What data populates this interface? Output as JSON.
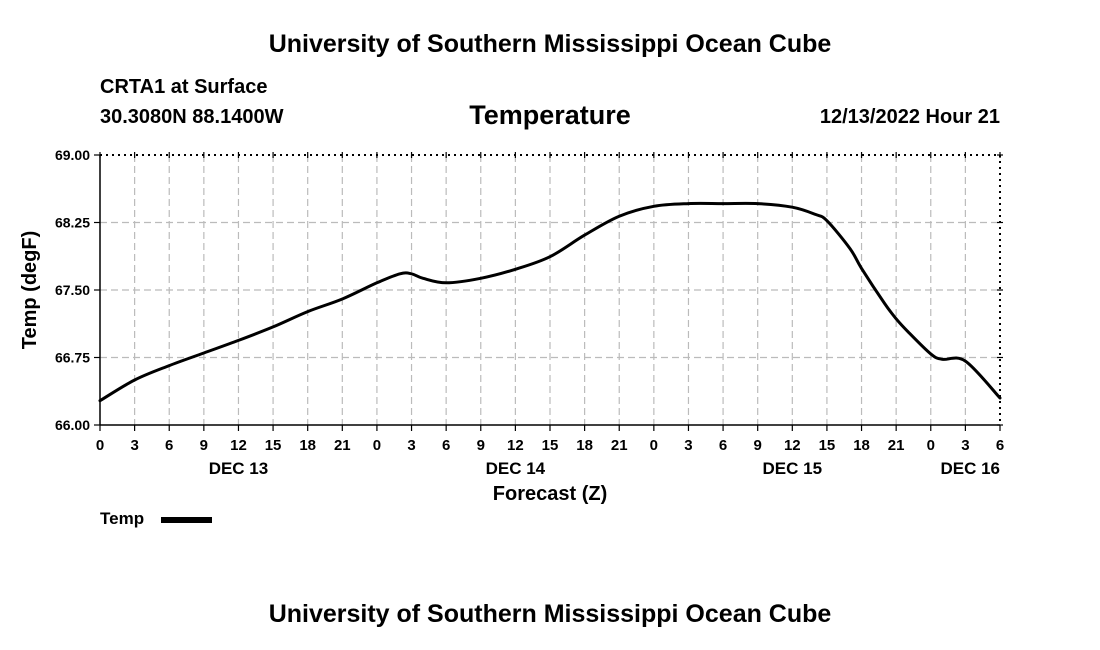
{
  "header": {
    "top_title": "University of Southern Mississippi Ocean Cube",
    "station": "CRTA1 at Surface",
    "coords": "30.3080N  88.1400W",
    "chart_title": "Temperature",
    "datetime": "12/13/2022 Hour 21"
  },
  "footer": {
    "bottom_title": "University of Southern Mississippi Ocean Cube"
  },
  "legend": {
    "label": "Temp"
  },
  "colors": {
    "line": "#000000",
    "grid": "#bbbbbb",
    "background": "#ffffff"
  },
  "chart_data": {
    "type": "line",
    "title": "Temperature",
    "xlabel": "Forecast (Z)",
    "ylabel": "Temp (degF)",
    "xlim": [
      0,
      78
    ],
    "ylim": [
      66.0,
      69.0
    ],
    "grid": true,
    "legend_position": "bottom-left",
    "x_ticks": [
      0,
      3,
      6,
      9,
      12,
      15,
      18,
      21,
      24,
      27,
      30,
      33,
      36,
      39,
      42,
      45,
      48,
      51,
      54,
      57,
      60,
      63,
      66,
      69,
      72,
      75,
      78
    ],
    "x_tick_labels": [
      "0",
      "3",
      "6",
      "9",
      "12",
      "15",
      "18",
      "21",
      "0",
      "3",
      "6",
      "9",
      "12",
      "15",
      "18",
      "21",
      "0",
      "3",
      "6",
      "9",
      "12",
      "15",
      "18",
      "21",
      "0",
      "3",
      "6"
    ],
    "y_ticks": [
      66.0,
      66.75,
      67.5,
      68.25,
      69.0
    ],
    "y_tick_labels": [
      "66.00",
      "66.75",
      "67.50",
      "68.25",
      "69.00"
    ],
    "date_labels": [
      {
        "label": "DEC 13",
        "x": 12,
        "align": "middle"
      },
      {
        "label": "DEC 14",
        "x": 36,
        "align": "middle"
      },
      {
        "label": "DEC 15",
        "x": 60,
        "align": "middle"
      },
      {
        "label": "DEC 16",
        "x": 78,
        "align": "end"
      }
    ],
    "series": [
      {
        "name": "Temp",
        "x": [
          0,
          3,
          6,
          9,
          12,
          15,
          18,
          21,
          24,
          26,
          27,
          28,
          30,
          33,
          36,
          39,
          42,
          45,
          48,
          51,
          54,
          57,
          60,
          62,
          63,
          65,
          66,
          68,
          69,
          70,
          72,
          73,
          75,
          78
        ],
        "values": [
          66.27,
          66.5,
          66.66,
          66.8,
          66.94,
          67.09,
          67.26,
          67.4,
          67.58,
          67.68,
          67.68,
          67.63,
          67.58,
          67.63,
          67.73,
          67.87,
          68.11,
          68.32,
          68.43,
          68.46,
          68.46,
          68.46,
          68.42,
          68.34,
          68.27,
          67.96,
          67.74,
          67.35,
          67.18,
          67.04,
          66.79,
          66.73,
          66.71,
          66.3
        ]
      }
    ]
  }
}
